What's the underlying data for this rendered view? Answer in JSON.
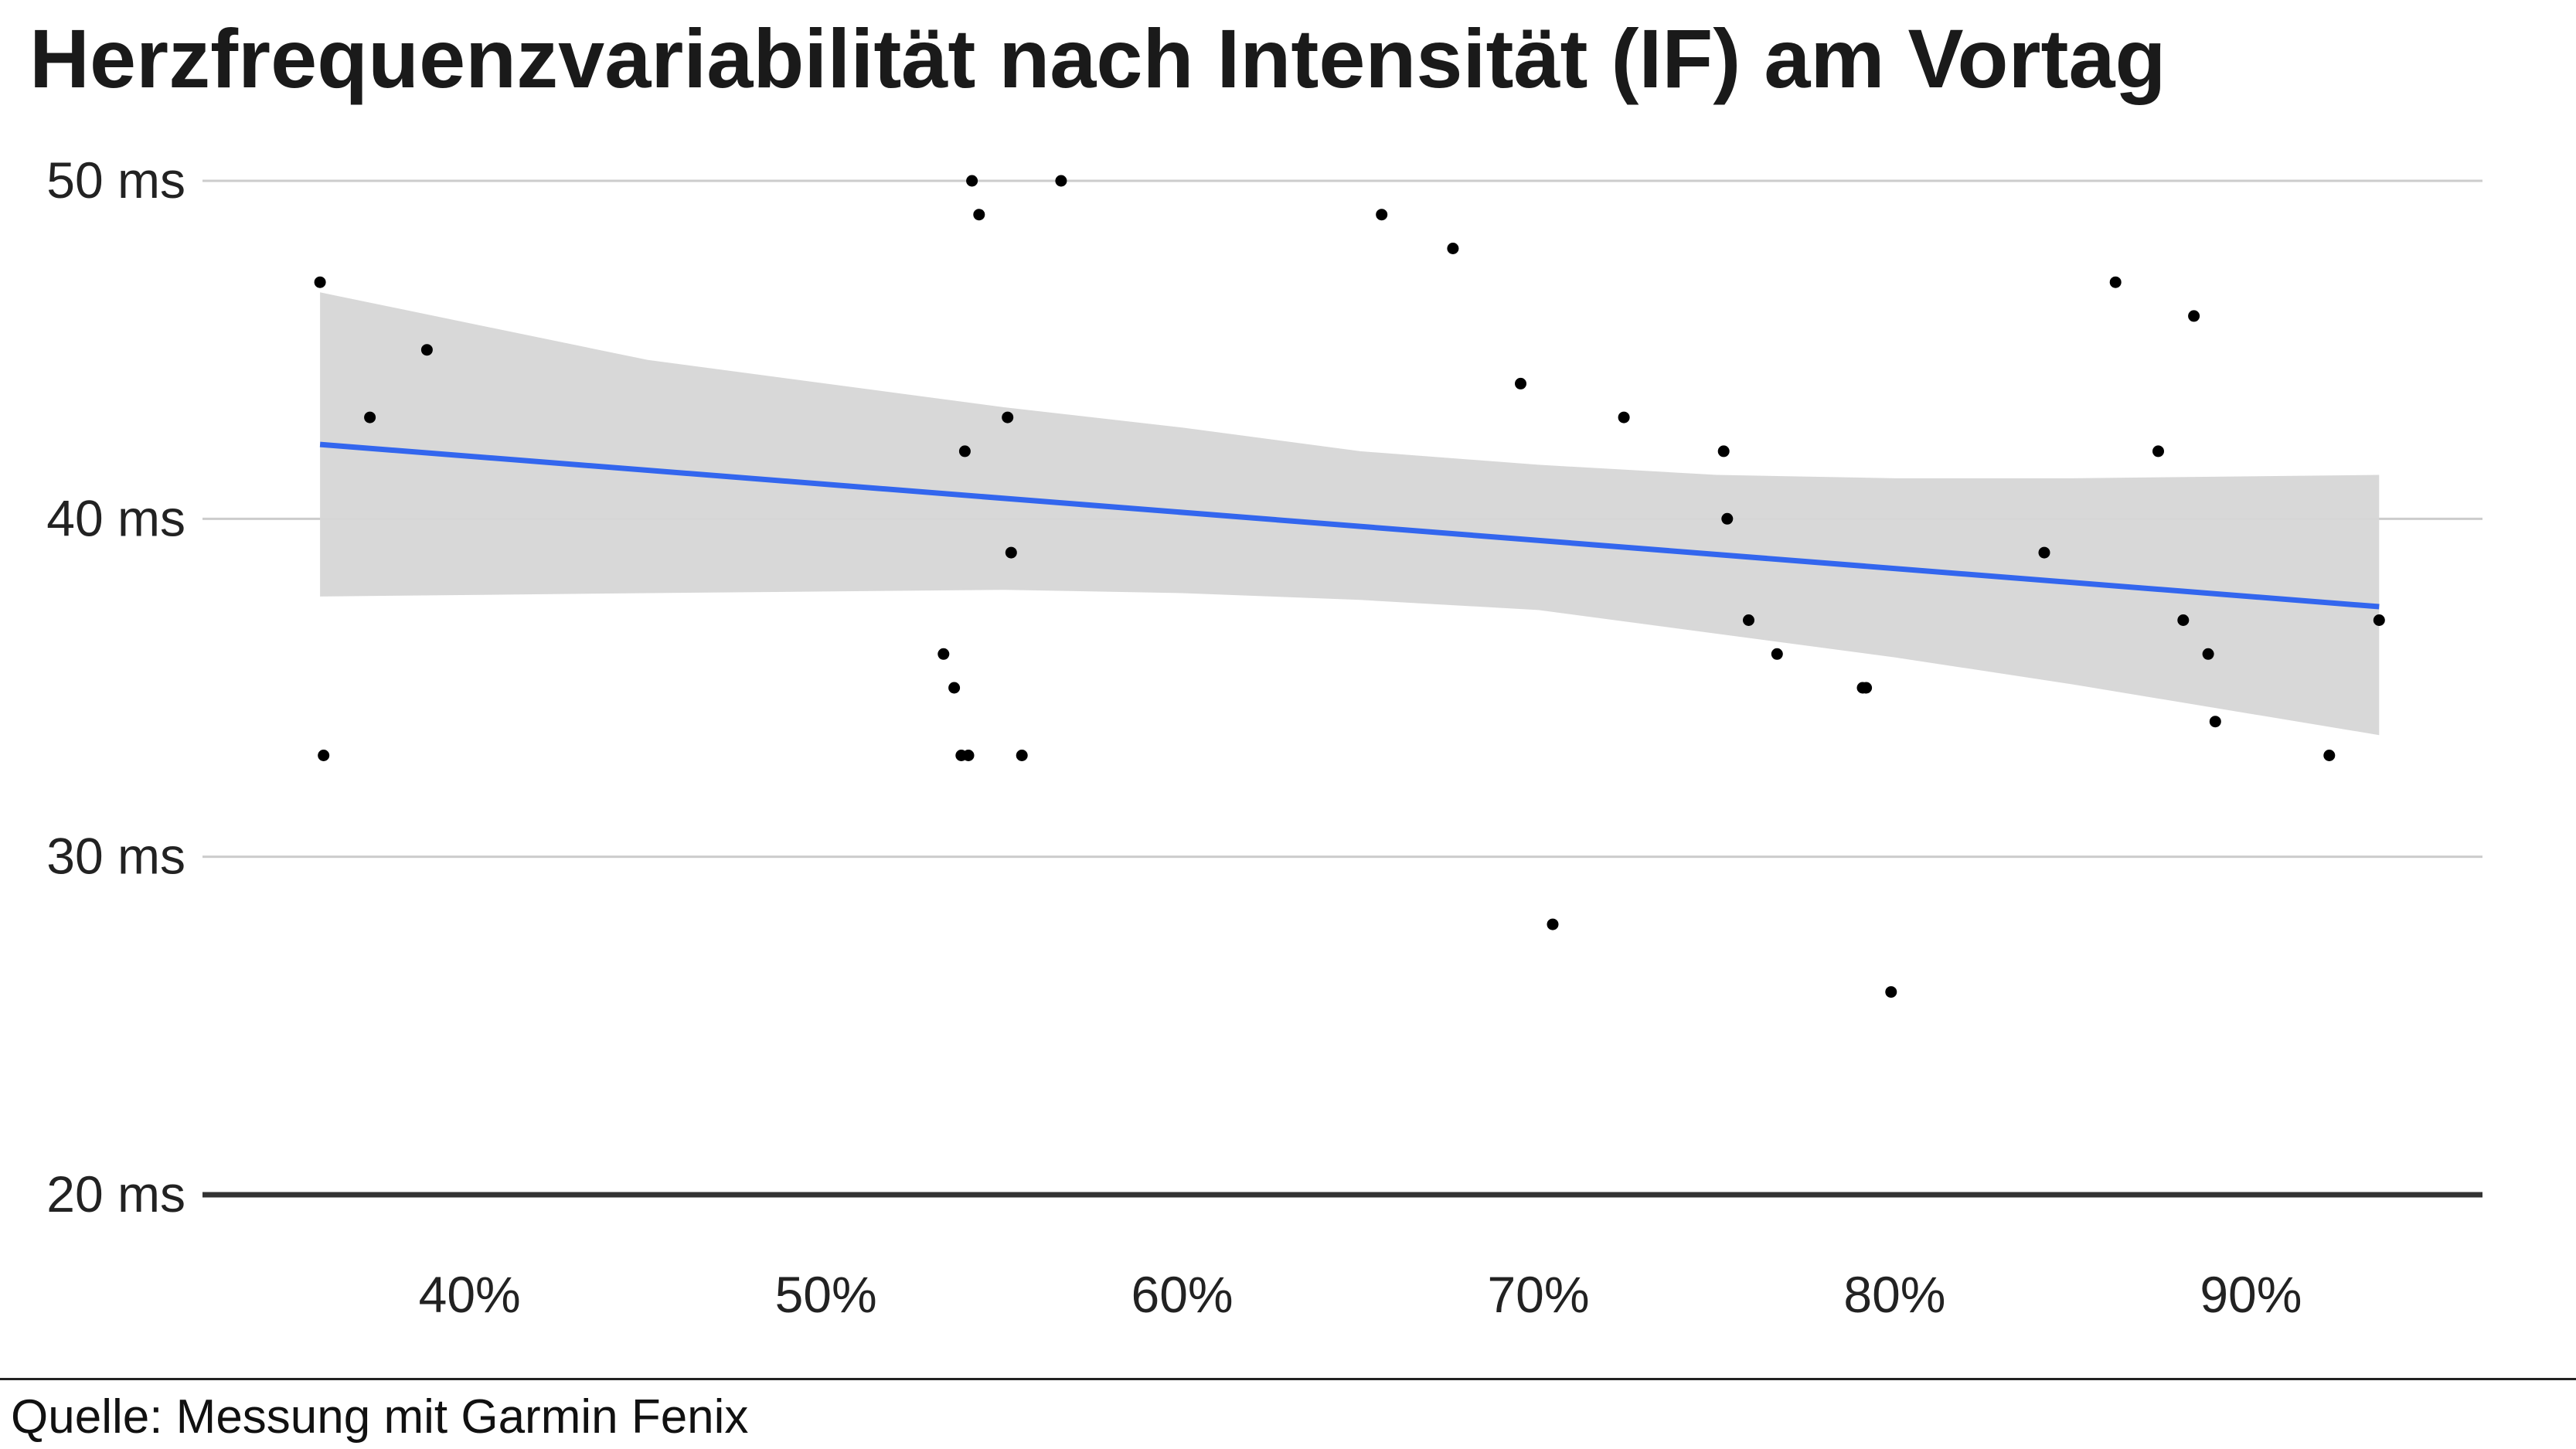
{
  "title": "Herzfrequenzvariabilität nach Intensität (IF) am Vortag",
  "source": "Quelle: Messung mit Garmin Fenix",
  "colors": {
    "trend_line": "#3366ee",
    "confidence_band": "#d6d6d6",
    "points": "#000000",
    "gridline": "#cccccc",
    "baseline": "#333333"
  },
  "chart_data": {
    "type": "scatter",
    "title": "Herzfrequenzvariabilität nach Intensität (IF) am Vortag",
    "xlabel": "",
    "ylabel": "",
    "x_unit": "%",
    "y_unit": "ms",
    "xlim": [
      32.5,
      96.5
    ],
    "ylim": [
      20,
      50
    ],
    "grid": true,
    "x_ticks": [
      {
        "value": 40,
        "label": "40%"
      },
      {
        "value": 50,
        "label": "50%"
      },
      {
        "value": 60,
        "label": "60%"
      },
      {
        "value": 70,
        "label": "70%"
      },
      {
        "value": 80,
        "label": "80%"
      },
      {
        "value": 90,
        "label": "90%"
      }
    ],
    "y_ticks": [
      {
        "value": 20,
        "label": "20 ms"
      },
      {
        "value": 30,
        "label": "30 ms"
      },
      {
        "value": 40,
        "label": "40 ms"
      },
      {
        "value": 50,
        "label": "50 ms"
      }
    ],
    "points": [
      {
        "x": 35.8,
        "y": 47
      },
      {
        "x": 35.9,
        "y": 33
      },
      {
        "x": 37.2,
        "y": 43
      },
      {
        "x": 38.8,
        "y": 45
      },
      {
        "x": 53.3,
        "y": 36
      },
      {
        "x": 53.6,
        "y": 35
      },
      {
        "x": 53.8,
        "y": 33
      },
      {
        "x": 53.9,
        "y": 42
      },
      {
        "x": 54.0,
        "y": 33
      },
      {
        "x": 54.1,
        "y": 50
      },
      {
        "x": 54.3,
        "y": 49
      },
      {
        "x": 55.1,
        "y": 43
      },
      {
        "x": 55.2,
        "y": 39
      },
      {
        "x": 55.5,
        "y": 33
      },
      {
        "x": 56.6,
        "y": 50
      },
      {
        "x": 65.6,
        "y": 49
      },
      {
        "x": 67.6,
        "y": 48
      },
      {
        "x": 69.5,
        "y": 44
      },
      {
        "x": 70.4,
        "y": 28
      },
      {
        "x": 72.4,
        "y": 43
      },
      {
        "x": 75.2,
        "y": 42
      },
      {
        "x": 75.3,
        "y": 40
      },
      {
        "x": 75.9,
        "y": 37
      },
      {
        "x": 76.7,
        "y": 36
      },
      {
        "x": 79.1,
        "y": 35
      },
      {
        "x": 79.2,
        "y": 35
      },
      {
        "x": 79.9,
        "y": 26
      },
      {
        "x": 84.2,
        "y": 39
      },
      {
        "x": 86.2,
        "y": 47
      },
      {
        "x": 87.4,
        "y": 42
      },
      {
        "x": 88.1,
        "y": 37
      },
      {
        "x": 88.4,
        "y": 46
      },
      {
        "x": 88.8,
        "y": 36
      },
      {
        "x": 89.0,
        "y": 34
      },
      {
        "x": 92.2,
        "y": 33
      },
      {
        "x": 93.6,
        "y": 37
      }
    ],
    "trend_line": {
      "method": "linear",
      "x": [
        35.8,
        93.6
      ],
      "y": [
        42.2,
        37.4
      ]
    },
    "confidence_band": {
      "x": [
        35.8,
        45,
        55,
        60,
        65,
        70,
        75,
        80,
        85,
        93.6
      ],
      "upper": [
        46.7,
        44.7,
        43.3,
        42.7,
        42.0,
        41.6,
        41.3,
        41.2,
        41.2,
        41.3
      ],
      "lower": [
        37.7,
        37.8,
        37.9,
        37.8,
        37.6,
        37.3,
        36.6,
        35.9,
        35.1,
        33.6
      ]
    }
  }
}
